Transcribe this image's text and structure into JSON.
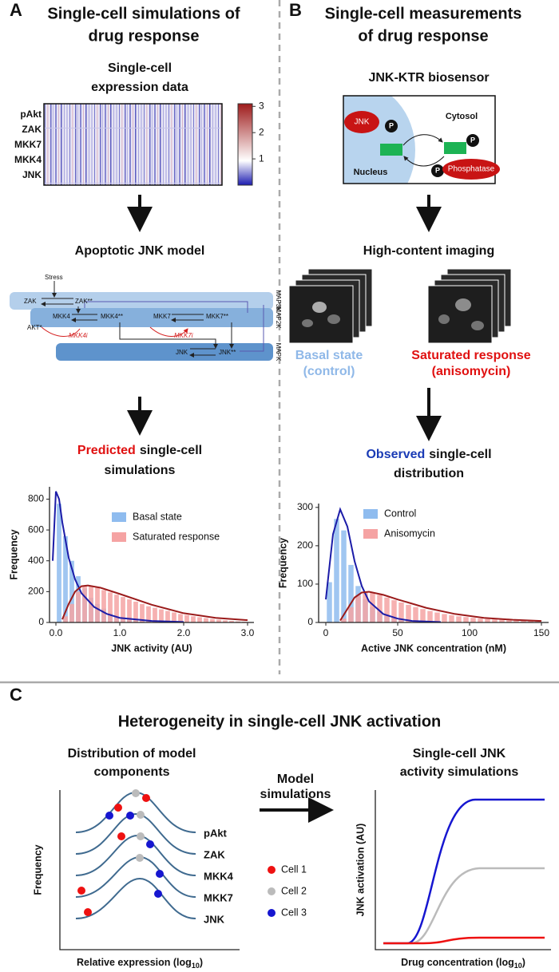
{
  "panel_a": {
    "label": "A",
    "title": [
      "Single-cell simulations of",
      "drug response"
    ],
    "step1": [
      "Single-cell",
      "expression data"
    ],
    "heatmap": {
      "rows": [
        "pAkt",
        "ZAK",
        "MKK7",
        "MKK4",
        "JNK"
      ],
      "colorbar_lim": [
        0,
        3.1
      ],
      "colorbar_ticks": [
        1,
        2,
        3
      ]
    },
    "step2": "Apoptotic JNK model",
    "model": {
      "stress": "Stress",
      "zak": "ZAK",
      "zak_p": "ZAK**",
      "mkk4": "MKK4",
      "mkk4_p": "MKK4**",
      "mkk7": "MKK7",
      "mkk7_p": "MKK7**",
      "akt": "AKT*",
      "mkk4i": "MKK4i",
      "mkk7i": "MKK7i",
      "jnk": "JNK",
      "jnk_p": "JNK**",
      "levels": [
        "MAP3K",
        "MAP2K",
        "MAPK"
      ]
    },
    "step3": {
      "highlight": "Predicted",
      "rest": "single-cell",
      "line2": "simulations"
    }
  },
  "panel_b": {
    "label": "B",
    "title": [
      "Single-cell measurements",
      "of drug response"
    ],
    "step1": "JNK-KTR biosensor",
    "sensor": {
      "jnk": "JNK",
      "p": "P",
      "cytosol": "Cytosol",
      "nucleus": "Nucleus",
      "phosphatase": "Phosphatase"
    },
    "step2": "High-content imaging",
    "basal": [
      "Basal state",
      "(control)"
    ],
    "saturated": [
      "Saturated response",
      "(anisomycin)"
    ],
    "step3": {
      "highlight": "Observed",
      "rest": "single-cell",
      "line2": "distribution"
    }
  },
  "panel_c": {
    "label": "C",
    "title": "Heterogeneity in single-cell JNK activation",
    "left_title": [
      "Distribution of model",
      "components"
    ],
    "right_title": [
      "Single-cell JNK",
      "activity simulations"
    ],
    "curve_labels": [
      "pAkt",
      "ZAK",
      "MKK4",
      "MKK7",
      "JNK"
    ],
    "y_left": "Frequency",
    "x_left": {
      "text": "Relative expression (log",
      "sub": "10",
      "end": ")"
    },
    "arrow_label": [
      "Model",
      "simulations"
    ],
    "legend": [
      "Cell 1",
      "Cell 2",
      "Cell 3"
    ],
    "y_right": "JNK activation (AU)",
    "x_right": {
      "text": "Drug concentration (log",
      "sub": "10",
      "end": ")"
    }
  },
  "chart_data": [
    {
      "type": "histogram",
      "xlabel": "JNK activity (AU)",
      "ylabel": "Frequency",
      "xlim": [
        -0.1,
        3.1
      ],
      "ylim": [
        0,
        880
      ],
      "xticks": [
        {
          "value": 0,
          "label": "0.0"
        },
        {
          "value": 1,
          "label": "1.0"
        },
        {
          "value": 2,
          "label": "2.0"
        },
        {
          "value": 3,
          "label": "3.0"
        }
      ],
      "yticks": [
        0,
        200,
        400,
        600,
        800
      ],
      "legend": "upper right",
      "series": [
        {
          "name": "Basal state",
          "color": "#8fbcef",
          "bins": [
            0,
            0.1,
            0.2,
            0.3,
            0.4,
            0.5,
            0.6,
            0.7,
            0.8,
            0.9,
            1.0,
            1.1,
            1.2,
            1.3,
            1.4,
            1.5,
            1.6
          ],
          "values": [
            770,
            560,
            400,
            300,
            220,
            160,
            120,
            90,
            60,
            40,
            30,
            20,
            15,
            10,
            5,
            3
          ]
        },
        {
          "name": "Saturated response",
          "color": "#f5a3a3",
          "bins": [
            0.1,
            0.2,
            0.3,
            0.4,
            0.5,
            0.6,
            0.7,
            0.8,
            0.9,
            1.0,
            1.1,
            1.2,
            1.3,
            1.4,
            1.5,
            1.6,
            1.7,
            1.8,
            1.9,
            2.0,
            2.1,
            2.2,
            2.3,
            2.4,
            2.5,
            2.6,
            2.7,
            2.8,
            2.9,
            3.0
          ],
          "values": [
            40,
            120,
            200,
            240,
            235,
            225,
            210,
            195,
            180,
            165,
            150,
            135,
            120,
            105,
            95,
            85,
            75,
            65,
            55,
            48,
            40,
            34,
            28,
            22,
            18,
            14,
            10,
            7,
            5
          ]
        }
      ],
      "curves": [
        {
          "color": "#1c1ca8",
          "x": [
            -0.05,
            0,
            0.05,
            0.1,
            0.2,
            0.3,
            0.4,
            0.6,
            0.8,
            1.0,
            1.5,
            2.0
          ],
          "values": [
            400,
            850,
            800,
            650,
            420,
            280,
            190,
            100,
            55,
            30,
            10,
            3
          ]
        },
        {
          "color": "#9b1b1b",
          "x": [
            0.1,
            0.2,
            0.3,
            0.4,
            0.5,
            0.7,
            1.0,
            1.5,
            2.0,
            2.5,
            3.0
          ],
          "values": [
            20,
            120,
            200,
            235,
            240,
            225,
            185,
            115,
            60,
            30,
            15
          ]
        }
      ]
    },
    {
      "type": "histogram",
      "xlabel": "Active JNK concentration (nM)",
      "ylabel": "Frequency",
      "xlim": [
        -5,
        155
      ],
      "ylim": [
        0,
        310
      ],
      "xticks": [
        0,
        50,
        100,
        150
      ],
      "yticks": [
        0,
        100,
        200,
        300
      ],
      "legend": "upper right",
      "series": [
        {
          "name": "Control",
          "color": "#8fbcef",
          "bins": [
            0,
            5,
            10,
            15,
            20,
            25,
            30,
            35,
            40,
            45,
            50,
            55,
            60
          ],
          "values": [
            105,
            270,
            240,
            150,
            95,
            60,
            40,
            28,
            18,
            12,
            8,
            5
          ]
        },
        {
          "name": "Anisomycin",
          "color": "#f5a3a3",
          "bins": [
            10,
            15,
            20,
            25,
            30,
            35,
            40,
            45,
            50,
            55,
            60,
            65,
            70,
            75,
            80,
            85,
            90,
            95,
            100,
            105,
            110,
            115,
            120,
            125,
            130,
            135,
            140,
            145,
            150
          ],
          "values": [
            10,
            40,
            70,
            80,
            78,
            72,
            65,
            58,
            52,
            46,
            40,
            35,
            30,
            26,
            22,
            19,
            16,
            14,
            12,
            10,
            9,
            8,
            7,
            6,
            5,
            5,
            4,
            3
          ]
        }
      ],
      "curves": [
        {
          "color": "#1c1ca8",
          "x": [
            0,
            5,
            10,
            15,
            20,
            25,
            30,
            40,
            50,
            60,
            80
          ],
          "values": [
            60,
            230,
            295,
            250,
            160,
            95,
            55,
            22,
            10,
            4,
            1
          ]
        },
        {
          "color": "#9b1b1b",
          "x": [
            10,
            15,
            20,
            25,
            30,
            40,
            50,
            70,
            90,
            110,
            130,
            150
          ],
          "values": [
            5,
            35,
            65,
            78,
            80,
            72,
            60,
            38,
            22,
            12,
            7,
            4
          ]
        }
      ]
    }
  ]
}
